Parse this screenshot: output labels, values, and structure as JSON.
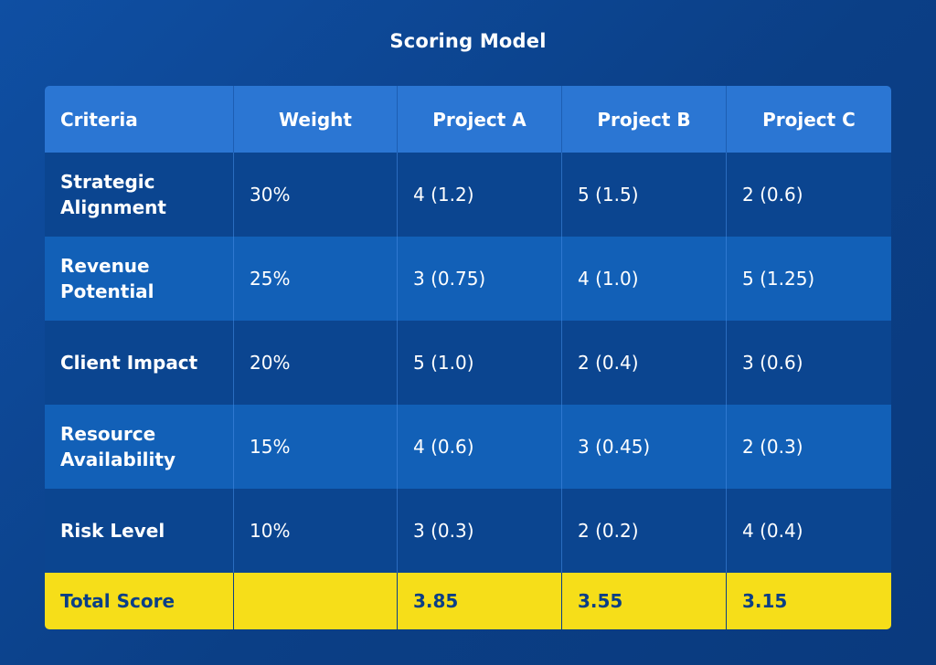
{
  "title": "Scoring Model",
  "table": {
    "headers": [
      "Criteria",
      "Weight",
      "Project A",
      "Project B",
      "Project C"
    ],
    "rows": [
      {
        "criteria": "Strategic Alignment",
        "weight": "30%",
        "a": "4 (1.2)",
        "b": "5 (1.5)",
        "c": "2 (0.6)"
      },
      {
        "criteria": "Revenue Potential",
        "weight": "25%",
        "a": "3 (0.75)",
        "b": "4 (1.0)",
        "c": "5 (1.25)"
      },
      {
        "criteria": "Client Impact",
        "weight": "20%",
        "a": "5 (1.0)",
        "b": "2 (0.4)",
        "c": "3 (0.6)"
      },
      {
        "criteria": "Resource Availability",
        "weight": "15%",
        "a": "4 (0.6)",
        "b": "3 (0.45)",
        "c": "2 (0.3)"
      },
      {
        "criteria": "Risk Level",
        "weight": "10%",
        "a": "3 (0.3)",
        "b": "2 (0.2)",
        "c": "4 (0.4)"
      }
    ],
    "total": {
      "label": "Total Score",
      "weight": "",
      "a": "3.85",
      "b": "3.55",
      "c": "3.15"
    }
  },
  "colors": {
    "background": "#0b3f86",
    "header": "#2b76d3",
    "row_dark": "#0b4590",
    "row_light": "#1260b7",
    "total_row": "#f6de19"
  }
}
